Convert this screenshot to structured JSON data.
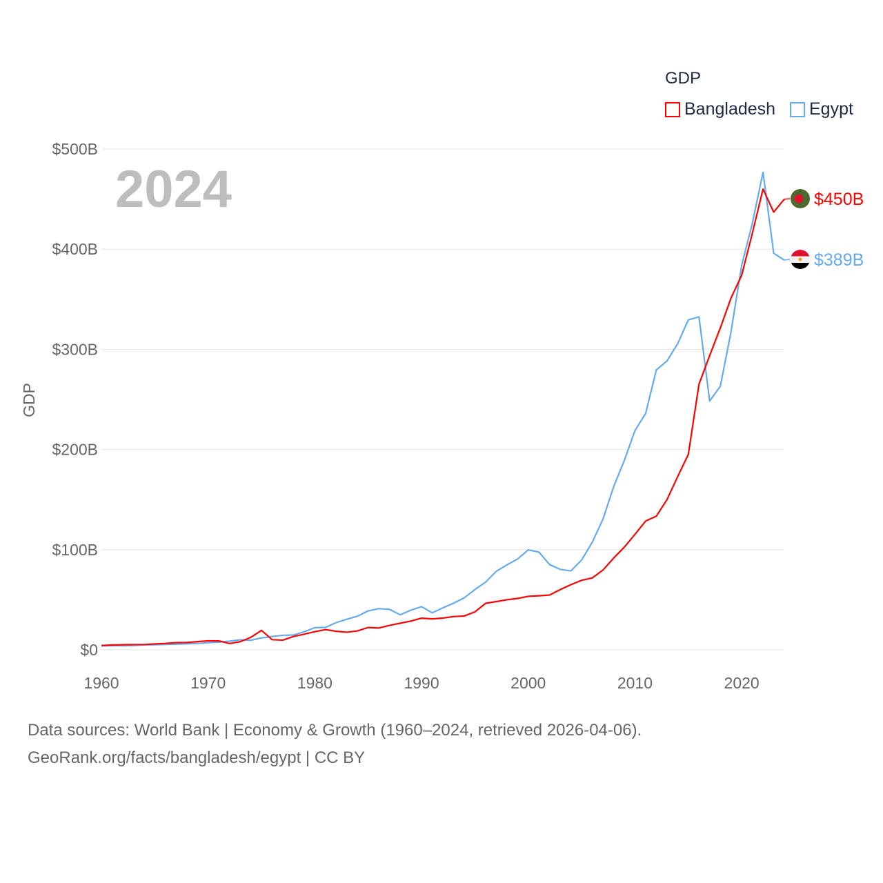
{
  "chart_data": {
    "type": "line",
    "title": "GDP",
    "year_label": "2024",
    "ylabel": "GDP",
    "xlabel": "",
    "xlim": [
      1960,
      2024
    ],
    "ylim": [
      0,
      500
    ],
    "y_unit": "billion USD",
    "x_ticks": [
      "1960",
      "1970",
      "1980",
      "1990",
      "2000",
      "2010",
      "2020"
    ],
    "y_ticks": [
      {
        "v": 0,
        "label": "$0"
      },
      {
        "v": 100,
        "label": "$100B"
      },
      {
        "v": 200,
        "label": "$200B"
      },
      {
        "v": 300,
        "label": "$300B"
      },
      {
        "v": 400,
        "label": "$400B"
      },
      {
        "v": 500,
        "label": "$500B"
      }
    ],
    "grid": true,
    "legend_position": "top-right",
    "x": [
      1960,
      1961,
      1962,
      1963,
      1964,
      1965,
      1966,
      1967,
      1968,
      1969,
      1970,
      1971,
      1972,
      1973,
      1974,
      1975,
      1976,
      1977,
      1978,
      1979,
      1980,
      1981,
      1982,
      1983,
      1984,
      1985,
      1986,
      1987,
      1988,
      1989,
      1990,
      1991,
      1992,
      1993,
      1994,
      1995,
      1996,
      1997,
      1998,
      1999,
      2000,
      2001,
      2002,
      2003,
      2004,
      2005,
      2006,
      2007,
      2008,
      2009,
      2010,
      2011,
      2012,
      2013,
      2014,
      2015,
      2016,
      2017,
      2018,
      2019,
      2020,
      2021,
      2022,
      2023,
      2024
    ],
    "series": [
      {
        "name": "Bangladesh",
        "color": "#ff0000",
        "end_label": "$450B",
        "values": [
          4.3,
          4.8,
          5.1,
          5.2,
          5.3,
          5.9,
          6.4,
          7.2,
          7.3,
          8.2,
          9.0,
          8.9,
          6.3,
          8.1,
          12.5,
          19.4,
          10.1,
          9.7,
          13.3,
          15.6,
          18.1,
          20.2,
          18.5,
          17.6,
          18.9,
          22.3,
          21.8,
          24.4,
          26.6,
          28.7,
          31.6,
          30.9,
          31.7,
          33.2,
          33.8,
          37.9,
          46.4,
          48.2,
          50.0,
          51.3,
          53.4,
          54.0,
          54.7,
          60.2,
          65.1,
          69.4,
          71.8,
          79.6,
          91.6,
          102.5,
          115.3,
          128.6,
          133.4,
          150.0,
          172.9,
          195.1,
          265.2,
          293.8,
          321.4,
          351.2,
          374.0,
          416.0,
          460.0,
          437.0,
          450.0
        ]
      },
      {
        "name": "Egypt",
        "color": "#64aaed",
        "end_label": "$389B",
        "values": [
          3.9,
          4.2,
          4.0,
          4.4,
          4.9,
          5.1,
          5.4,
          5.7,
          6.0,
          6.4,
          7.1,
          7.7,
          8.6,
          10.0,
          9.5,
          11.9,
          13.3,
          14.5,
          14.8,
          18.0,
          22.1,
          22.4,
          27.2,
          30.5,
          33.6,
          38.9,
          41.1,
          40.4,
          35.0,
          39.6,
          43.1,
          37.0,
          41.9,
          46.6,
          51.9,
          60.2,
          67.6,
          78.4,
          84.8,
          90.7,
          99.8,
          97.6,
          85.1,
          80.3,
          78.8,
          89.7,
          107.5,
          130.4,
          162.8,
          189.0,
          218.9,
          236.0,
          279.4,
          288.4,
          305.6,
          329.4,
          332.4,
          248.4,
          263.2,
          317.4,
          383.8,
          425.9,
          476.7,
          396.0,
          389.0
        ]
      }
    ]
  },
  "legend": {
    "title": "GDP",
    "items": [
      "Bangladesh",
      "Egypt"
    ]
  },
  "footer": {
    "line1": "Data sources: World Bank | Economy & Growth (1960–2024, retrieved 2026-04-06).",
    "line2": "GeoRank.org/facts/bangladesh/egypt | CC BY"
  }
}
